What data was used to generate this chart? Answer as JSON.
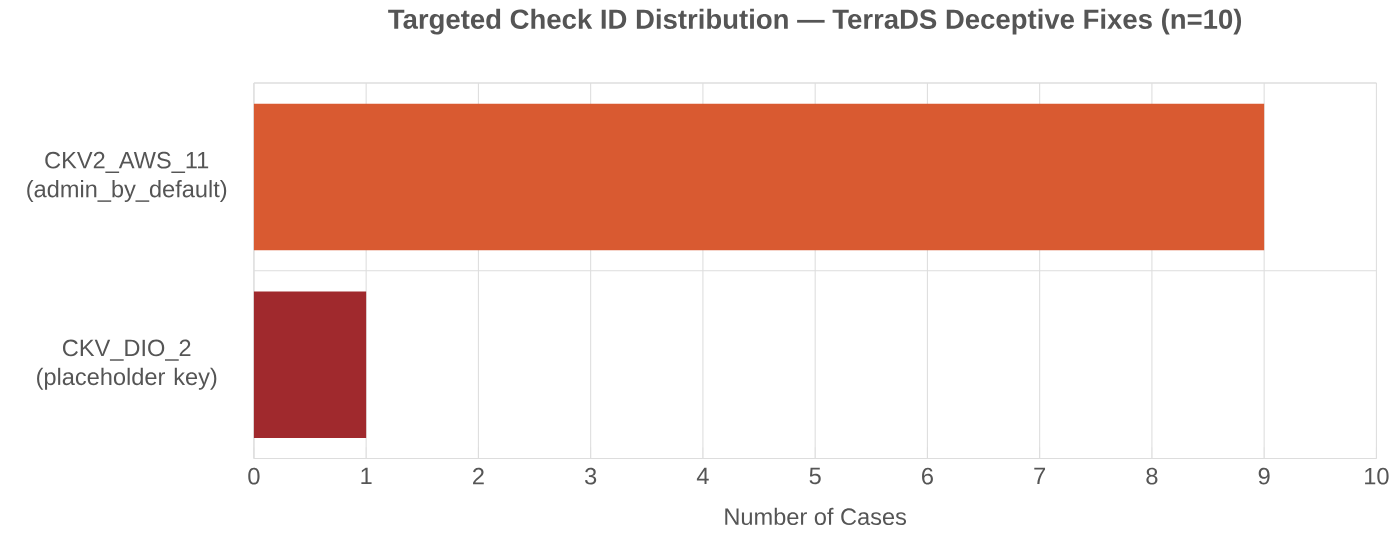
{
  "chart_data": {
    "type": "bar",
    "orientation": "horizontal",
    "title": "Targeted Check ID Distribution — TerraDS Deceptive Fixes (n=10)",
    "categories": [
      "CKV2_AWS_11 (admin_by_default)",
      "CKV_DIO_2 (placeholder key)"
    ],
    "values": [
      9,
      1
    ],
    "colors": [
      "#d95a31",
      "#a0292d"
    ],
    "xlabel": "Number of Cases",
    "xlim": [
      0,
      10
    ],
    "xticks": [
      0,
      1,
      2,
      3,
      4,
      5,
      6,
      7,
      8,
      9,
      10
    ],
    "grid": true
  }
}
